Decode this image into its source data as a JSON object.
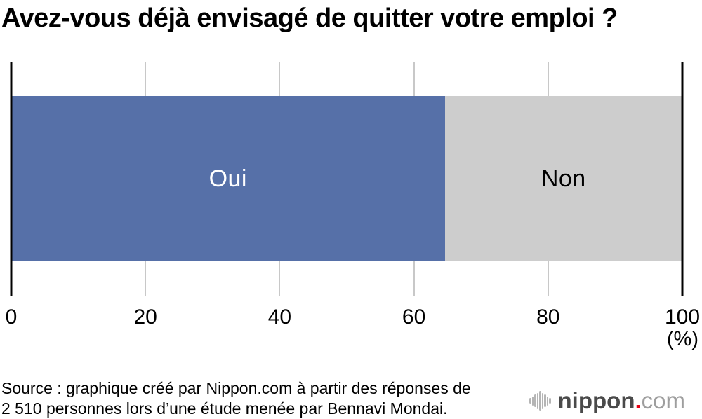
{
  "title": "Avez-vous déjà envisagé de quitter votre emploi ?",
  "chart_data": {
    "type": "bar",
    "orientation": "horizontal-stacked",
    "title": "Avez-vous déjà envisagé de quitter votre emploi ?",
    "categories": [
      "Oui",
      "Non"
    ],
    "values": [
      64.6,
      35.4
    ],
    "segment_colors": [
      "#5670a8",
      "#cdcdcd"
    ],
    "label_colors": [
      "#ffffff",
      "#000000"
    ],
    "xlabel": "",
    "ylabel": "",
    "xlim": [
      0,
      100
    ],
    "ticks": [
      0,
      20,
      40,
      60,
      80,
      100
    ],
    "unit_label": "(%)",
    "grid": true,
    "legend_position": "none"
  },
  "source": {
    "line1": "Source : graphique créé par Nippon.com à partir des réponses de",
    "line2": "2 510 personnes lors d’une étude menée par Bennavi Mondai."
  },
  "logo": {
    "name": "nippon",
    "dot": ".",
    "tld": "com",
    "name_color": "#4a4a4a",
    "dot_color": "#e60012",
    "tld_color": "#9e9e9e",
    "wave_bar_heights": [
      8,
      13,
      18,
      23,
      28,
      23,
      18,
      13,
      8
    ]
  }
}
